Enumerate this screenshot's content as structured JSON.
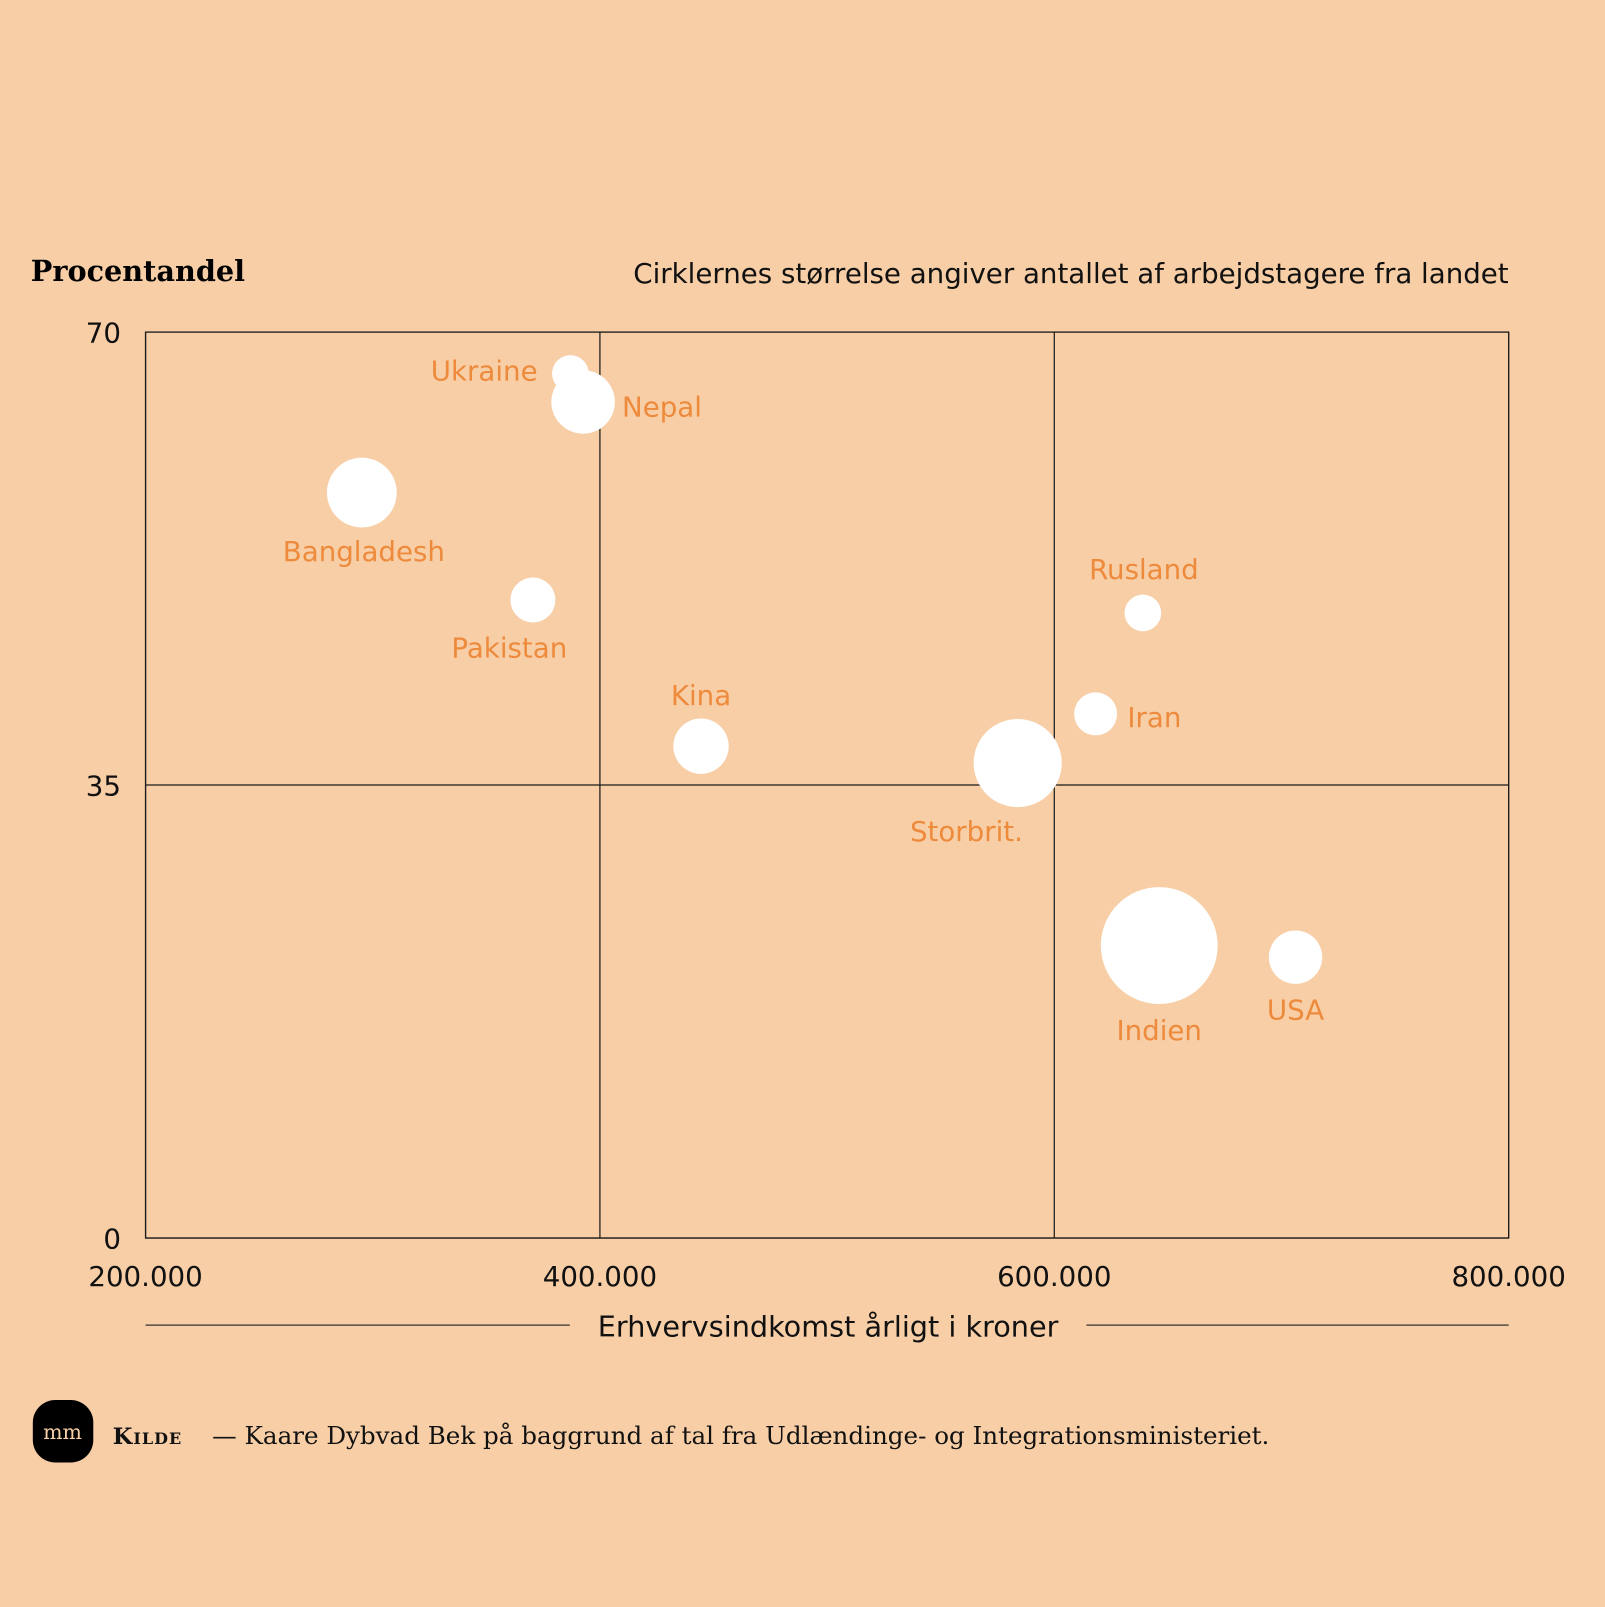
{
  "colors": {
    "background": "#f7cea6",
    "bubble": "#ffffff",
    "label": "#ee8a3c",
    "axis": "#1a1a1a"
  },
  "chart_data": {
    "type": "scatter",
    "subtitle": "Cirklernes størrelse angiver antallet af arbejdstagere fra landet",
    "ylabel": "Procentandel",
    "xlabel": "Erhvervsindkomst årligt i kroner",
    "xlim": [
      200000,
      800000
    ],
    "ylim": [
      0,
      70
    ],
    "xticks": [
      200000,
      400000,
      600000,
      800000
    ],
    "xtick_labels": [
      "200.000",
      "400.000",
      "600.000",
      "800.000"
    ],
    "yticks": [
      0,
      35,
      70
    ],
    "ytick_labels": [
      "0",
      "35",
      "70"
    ],
    "grid": true,
    "size_note": "relative bubble area",
    "points": [
      {
        "label": "Ukraine",
        "x": 387000,
        "y": 66.8,
        "size": 3.2
      },
      {
        "label": "Nepal",
        "x": 392600,
        "y": 64.6,
        "size": 9.6
      },
      {
        "label": "Bangladesh",
        "x": 295200,
        "y": 57.6,
        "size": 11.6
      },
      {
        "label": "Pakistan",
        "x": 370500,
        "y": 49.3,
        "size": 4.8
      },
      {
        "label": "Kina",
        "x": 444500,
        "y": 38.0,
        "size": 7.3
      },
      {
        "label": "Storbrit.",
        "x": 583900,
        "y": 36.7,
        "size": 18.5
      },
      {
        "label": "Iran",
        "x": 618200,
        "y": 40.5,
        "size": 4.4
      },
      {
        "label": "Rusland",
        "x": 639000,
        "y": 48.3,
        "size": 3.2
      },
      {
        "label": "Indien",
        "x": 646200,
        "y": 22.6,
        "size": 32.5
      },
      {
        "label": "USA",
        "x": 706200,
        "y": 21.7,
        "size": 6.8
      }
    ]
  },
  "footer": {
    "logo_text": "mm",
    "source_label": "Kilde",
    "source_text": "— Kaare Dybvad Bek på baggrund af tal fra Udlændinge- og Integrationsministeriet."
  }
}
